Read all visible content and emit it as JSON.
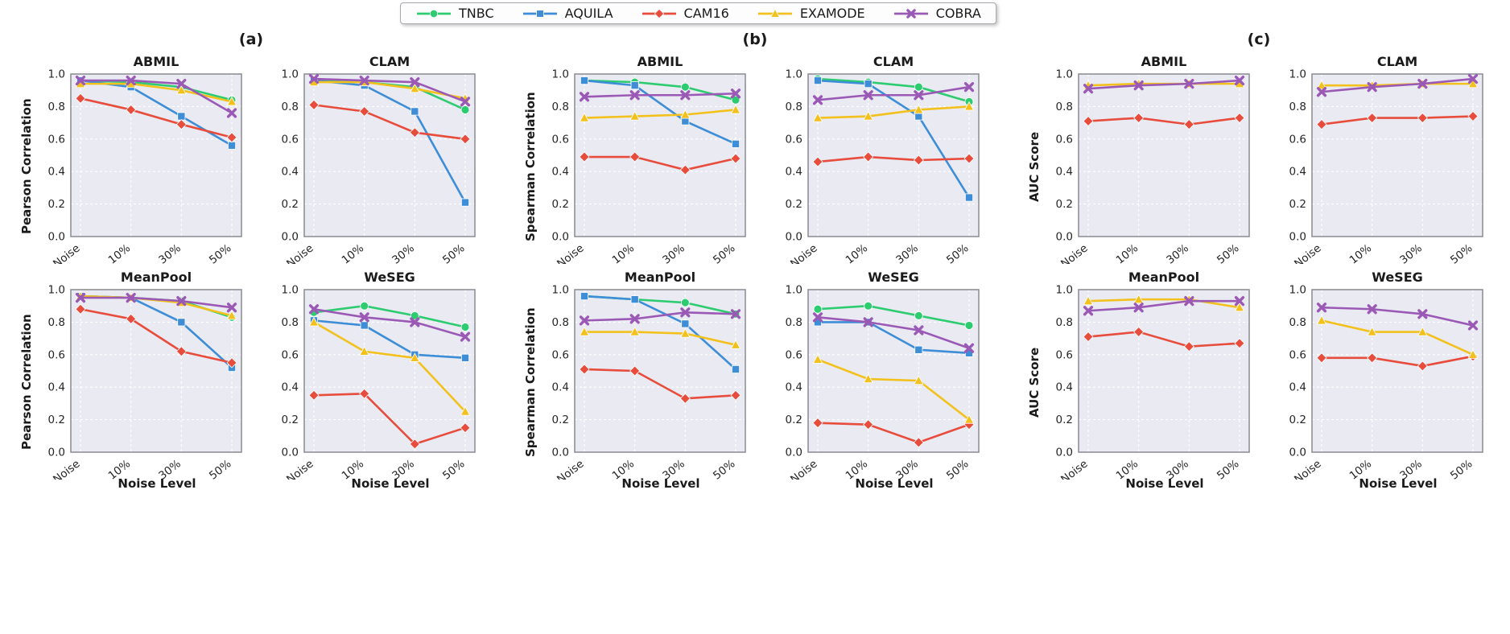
{
  "legend": {
    "items": [
      {
        "label": "TNBC",
        "color": "#2ecc71",
        "marker": "circle"
      },
      {
        "label": "AQUILA",
        "color": "#3d8dd7",
        "marker": "square"
      },
      {
        "label": "CAM16",
        "color": "#e74c3c",
        "marker": "diamond"
      },
      {
        "label": "EXAMODE",
        "color": "#f2c11d",
        "marker": "triangle"
      },
      {
        "label": "COBRA",
        "color": "#9b59b6",
        "marker": "x"
      }
    ]
  },
  "axis": {
    "x_ticks": [
      "No Noise",
      "10%",
      "30%",
      "50%"
    ],
    "y_ticks": [
      "0.0",
      "0.2",
      "0.4",
      "0.6",
      "0.8",
      "1.0"
    ],
    "xlabel": "Noise Level",
    "ylim": [
      0.0,
      1.0
    ],
    "grid": true
  },
  "groups": [
    {
      "label": "(a)",
      "ylabel": "Pearson Correlation"
    },
    {
      "label": "(b)",
      "ylabel": "Spearman Correlation"
    },
    {
      "label": "(c)",
      "ylabel": "AUC Score"
    }
  ],
  "styles": {
    "plot_bg": "#eaeaf2",
    "grid_color": "#ffffff",
    "spine_color": "#8f8f98",
    "text_color": "#1a1a1a"
  },
  "chart_data": [
    {
      "type": "line",
      "group": "(a)",
      "title": "ABMIL",
      "ylabel": "Pearson Correlation",
      "x": [
        "No Noise",
        "10%",
        "30%",
        "50%"
      ],
      "ylim": [
        0,
        1
      ],
      "series": [
        {
          "name": "TNBC",
          "values": [
            0.96,
            0.95,
            0.92,
            0.84
          ]
        },
        {
          "name": "AQUILA",
          "values": [
            0.96,
            0.92,
            0.74,
            0.56
          ]
        },
        {
          "name": "CAM16",
          "values": [
            0.85,
            0.78,
            0.69,
            0.61
          ]
        },
        {
          "name": "EXAMODE",
          "values": [
            0.94,
            0.94,
            0.9,
            0.83
          ]
        },
        {
          "name": "COBRA",
          "values": [
            0.96,
            0.96,
            0.94,
            0.76
          ]
        }
      ]
    },
    {
      "type": "line",
      "group": "(a)",
      "title": "CLAM",
      "ylabel": "Pearson Correlation",
      "x": [
        "No Noise",
        "10%",
        "30%",
        "50%"
      ],
      "ylim": [
        0,
        1
      ],
      "series": [
        {
          "name": "TNBC",
          "values": [
            0.96,
            0.95,
            0.92,
            0.78
          ]
        },
        {
          "name": "AQUILA",
          "values": [
            0.96,
            0.93,
            0.77,
            0.21
          ]
        },
        {
          "name": "CAM16",
          "values": [
            0.81,
            0.77,
            0.64,
            0.6
          ]
        },
        {
          "name": "EXAMODE",
          "values": [
            0.95,
            0.95,
            0.91,
            0.85
          ]
        },
        {
          "name": "COBRA",
          "values": [
            0.97,
            0.96,
            0.95,
            0.83
          ]
        }
      ]
    },
    {
      "type": "line",
      "group": "(a)",
      "title": "MeanPool",
      "ylabel": "Pearson Correlation",
      "xlabel": "Noise Level",
      "x": [
        "No Noise",
        "10%",
        "30%",
        "50%"
      ],
      "ylim": [
        0,
        1
      ],
      "series": [
        {
          "name": "TNBC",
          "values": [
            0.96,
            0.95,
            0.93,
            0.83
          ]
        },
        {
          "name": "AQUILA",
          "values": [
            0.96,
            0.95,
            0.8,
            0.52
          ]
        },
        {
          "name": "CAM16",
          "values": [
            0.88,
            0.82,
            0.62,
            0.55
          ]
        },
        {
          "name": "EXAMODE",
          "values": [
            0.96,
            0.95,
            0.92,
            0.84
          ]
        },
        {
          "name": "COBRA",
          "values": [
            0.95,
            0.95,
            0.93,
            0.89
          ]
        }
      ]
    },
    {
      "type": "line",
      "group": "(a)",
      "title": "WeSEG",
      "ylabel": "Pearson Correlation",
      "xlabel": "Noise Level",
      "x": [
        "No Noise",
        "10%",
        "30%",
        "50%"
      ],
      "ylim": [
        0,
        1
      ],
      "series": [
        {
          "name": "TNBC",
          "values": [
            0.86,
            0.9,
            0.84,
            0.77
          ]
        },
        {
          "name": "AQUILA",
          "values": [
            0.81,
            0.78,
            0.6,
            0.58
          ]
        },
        {
          "name": "CAM16",
          "values": [
            0.35,
            0.36,
            0.05,
            0.15
          ]
        },
        {
          "name": "EXAMODE",
          "values": [
            0.8,
            0.62,
            0.58,
            0.25
          ]
        },
        {
          "name": "COBRA",
          "values": [
            0.88,
            0.83,
            0.8,
            0.71
          ]
        }
      ]
    },
    {
      "type": "line",
      "group": "(b)",
      "title": "ABMIL",
      "ylabel": "Spearman Correlation",
      "x": [
        "No Noise",
        "10%",
        "30%",
        "50%"
      ],
      "ylim": [
        0,
        1
      ],
      "series": [
        {
          "name": "TNBC",
          "values": [
            0.96,
            0.95,
            0.92,
            0.84
          ]
        },
        {
          "name": "AQUILA",
          "values": [
            0.96,
            0.93,
            0.71,
            0.57
          ]
        },
        {
          "name": "CAM16",
          "values": [
            0.49,
            0.49,
            0.41,
            0.48
          ]
        },
        {
          "name": "EXAMODE",
          "values": [
            0.73,
            0.74,
            0.75,
            0.78
          ]
        },
        {
          "name": "COBRA",
          "values": [
            0.86,
            0.87,
            0.87,
            0.88
          ]
        }
      ]
    },
    {
      "type": "line",
      "group": "(b)",
      "title": "CLAM",
      "ylabel": "Spearman Correlation",
      "x": [
        "No Noise",
        "10%",
        "30%",
        "50%"
      ],
      "ylim": [
        0,
        1
      ],
      "series": [
        {
          "name": "TNBC",
          "values": [
            0.97,
            0.95,
            0.92,
            0.83
          ]
        },
        {
          "name": "AQUILA",
          "values": [
            0.96,
            0.94,
            0.74,
            0.24
          ]
        },
        {
          "name": "CAM16",
          "values": [
            0.46,
            0.49,
            0.47,
            0.48
          ]
        },
        {
          "name": "EXAMODE",
          "values": [
            0.73,
            0.74,
            0.78,
            0.8
          ]
        },
        {
          "name": "COBRA",
          "values": [
            0.84,
            0.87,
            0.87,
            0.92
          ]
        }
      ]
    },
    {
      "type": "line",
      "group": "(b)",
      "title": "MeanPool",
      "ylabel": "Spearman Correlation",
      "xlabel": "Noise Level",
      "x": [
        "No Noise",
        "10%",
        "30%",
        "50%"
      ],
      "ylim": [
        0,
        1
      ],
      "series": [
        {
          "name": "TNBC",
          "values": [
            0.96,
            0.94,
            0.92,
            0.85
          ]
        },
        {
          "name": "AQUILA",
          "values": [
            0.96,
            0.94,
            0.79,
            0.51
          ]
        },
        {
          "name": "CAM16",
          "values": [
            0.51,
            0.5,
            0.33,
            0.35
          ]
        },
        {
          "name": "EXAMODE",
          "values": [
            0.74,
            0.74,
            0.73,
            0.66
          ]
        },
        {
          "name": "COBRA",
          "values": [
            0.81,
            0.82,
            0.86,
            0.85
          ]
        }
      ]
    },
    {
      "type": "line",
      "group": "(b)",
      "title": "WeSEG",
      "ylabel": "Spearman Correlation",
      "xlabel": "Noise Level",
      "x": [
        "No Noise",
        "10%",
        "30%",
        "50%"
      ],
      "ylim": [
        0,
        1
      ],
      "series": [
        {
          "name": "TNBC",
          "values": [
            0.88,
            0.9,
            0.84,
            0.78
          ]
        },
        {
          "name": "AQUILA",
          "values": [
            0.8,
            0.8,
            0.63,
            0.61
          ]
        },
        {
          "name": "CAM16",
          "values": [
            0.18,
            0.17,
            0.06,
            0.17
          ]
        },
        {
          "name": "EXAMODE",
          "values": [
            0.57,
            0.45,
            0.44,
            0.2
          ]
        },
        {
          "name": "COBRA",
          "values": [
            0.83,
            0.8,
            0.75,
            0.64
          ]
        }
      ]
    },
    {
      "type": "line",
      "group": "(c)",
      "title": "ABMIL",
      "ylabel": "AUC Score",
      "x": [
        "No Noise",
        "10%",
        "30%",
        "50%"
      ],
      "ylim": [
        0,
        1
      ],
      "series": [
        {
          "name": "CAM16",
          "values": [
            0.71,
            0.73,
            0.69,
            0.73
          ]
        },
        {
          "name": "EXAMODE",
          "values": [
            0.93,
            0.94,
            0.94,
            0.94
          ]
        },
        {
          "name": "COBRA",
          "values": [
            0.91,
            0.93,
            0.94,
            0.96
          ]
        }
      ]
    },
    {
      "type": "line",
      "group": "(c)",
      "title": "CLAM",
      "ylabel": "AUC Score",
      "x": [
        "No Noise",
        "10%",
        "30%",
        "50%"
      ],
      "ylim": [
        0,
        1
      ],
      "series": [
        {
          "name": "CAM16",
          "values": [
            0.69,
            0.73,
            0.73,
            0.74
          ]
        },
        {
          "name": "EXAMODE",
          "values": [
            0.93,
            0.93,
            0.94,
            0.94
          ]
        },
        {
          "name": "COBRA",
          "values": [
            0.89,
            0.92,
            0.94,
            0.97
          ]
        }
      ]
    },
    {
      "type": "line",
      "group": "(c)",
      "title": "MeanPool",
      "ylabel": "AUC Score",
      "xlabel": "Noise Level",
      "x": [
        "No Noise",
        "10%",
        "30%",
        "50%"
      ],
      "ylim": [
        0,
        1
      ],
      "series": [
        {
          "name": "CAM16",
          "values": [
            0.71,
            0.74,
            0.65,
            0.67
          ]
        },
        {
          "name": "EXAMODE",
          "values": [
            0.93,
            0.94,
            0.94,
            0.89
          ]
        },
        {
          "name": "COBRA",
          "values": [
            0.87,
            0.89,
            0.93,
            0.93
          ]
        }
      ]
    },
    {
      "type": "line",
      "group": "(c)",
      "title": "WeSEG",
      "ylabel": "AUC Score",
      "xlabel": "Noise Level",
      "x": [
        "No Noise",
        "10%",
        "30%",
        "50%"
      ],
      "ylim": [
        0,
        1
      ],
      "series": [
        {
          "name": "CAM16",
          "values": [
            0.58,
            0.58,
            0.53,
            0.59
          ]
        },
        {
          "name": "EXAMODE",
          "values": [
            0.81,
            0.74,
            0.74,
            0.6
          ]
        },
        {
          "name": "COBRA",
          "values": [
            0.89,
            0.88,
            0.85,
            0.78
          ]
        }
      ]
    }
  ]
}
